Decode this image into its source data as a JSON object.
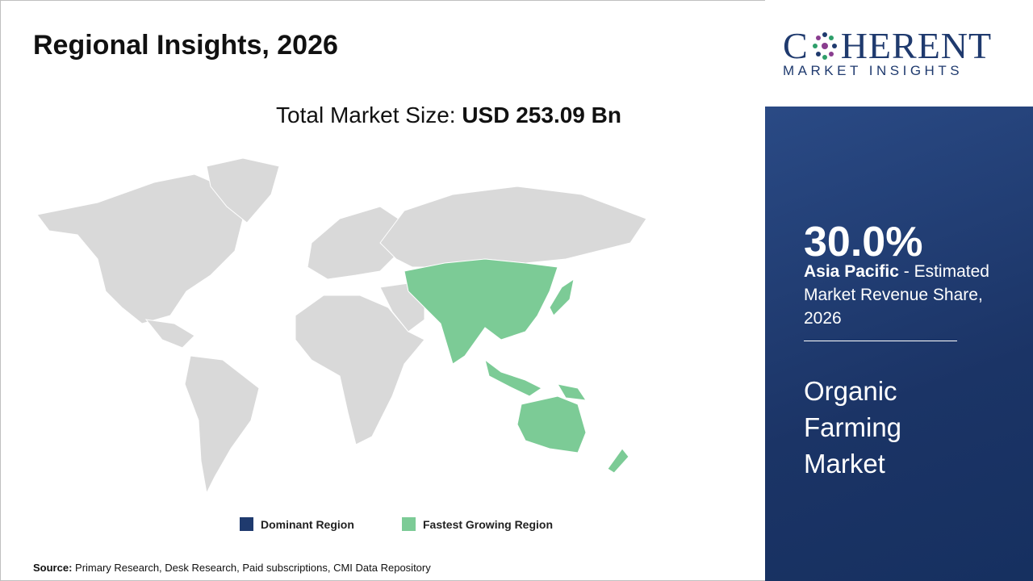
{
  "header": {
    "title": "Regional Insights, 2026"
  },
  "market_size": {
    "label": "Total Market Size:",
    "value": "USD 253.09 Bn"
  },
  "legend": {
    "items": [
      "Dominant Region",
      "Fastest Growing Region"
    ]
  },
  "source": {
    "label": "Source:",
    "text": "Primary Research, Desk Research, Paid subscriptions, CMI Data Repository"
  },
  "logo": {
    "name_start": "C",
    "name_end": "HERENT",
    "tagline": "MARKET INSIGHTS"
  },
  "panel": {
    "share": "30.0%",
    "region": "Asia Pacific",
    "description": "- Estimated Market Revenue Share, 2026",
    "market": "Organic Farming Market"
  }
}
